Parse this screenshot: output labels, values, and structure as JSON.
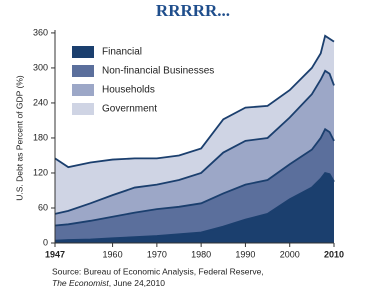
{
  "chart_data": {
    "type": "stacked-area",
    "title": "RRRRR...",
    "y_label": "U.S. Debt as Percent of GDP (%)",
    "source": [
      "Source: Bureau of Economic Analysis, Federal Reserve,",
      "The Economist",
      ", June 24,2010"
    ],
    "x": [
      1947,
      1950,
      1955,
      1960,
      1965,
      1970,
      1975,
      1980,
      1985,
      1990,
      1995,
      2000,
      2005,
      2007,
      2008,
      2009,
      2010
    ],
    "series": [
      {
        "name": "Financial",
        "color": "#1b3f6e",
        "values": [
          4,
          5,
          6,
          8,
          10,
          12,
          15,
          18,
          28,
          40,
          50,
          75,
          95,
          110,
          120,
          118,
          105
        ]
      },
      {
        "name": "Non-financial Businesses",
        "color": "#5b6f9c",
        "values": [
          26,
          27,
          32,
          37,
          42,
          46,
          47,
          50,
          57,
          60,
          58,
          60,
          65,
          70,
          75,
          72,
          70
        ]
      },
      {
        "name": "Households",
        "color": "#9ca7c7",
        "values": [
          20,
          23,
          30,
          37,
          43,
          42,
          46,
          52,
          70,
          75,
          72,
          80,
          95,
          100,
          100,
          100,
          95
        ]
      },
      {
        "name": "Government",
        "color": "#cfd4e4",
        "values": [
          95,
          75,
          70,
          61,
          50,
          45,
          42,
          42,
          57,
          57,
          55,
          47,
          45,
          45,
          60,
          60,
          75
        ]
      }
    ],
    "xlim": [
      1947,
      2010
    ],
    "xticks": [
      1947,
      1960,
      1970,
      1980,
      1990,
      2000,
      2010
    ],
    "ylim": [
      0,
      365
    ],
    "yticks": [
      0,
      60,
      120,
      180,
      240,
      300,
      360
    ],
    "line_color": "#1b3f6e",
    "legend": "top-left"
  }
}
